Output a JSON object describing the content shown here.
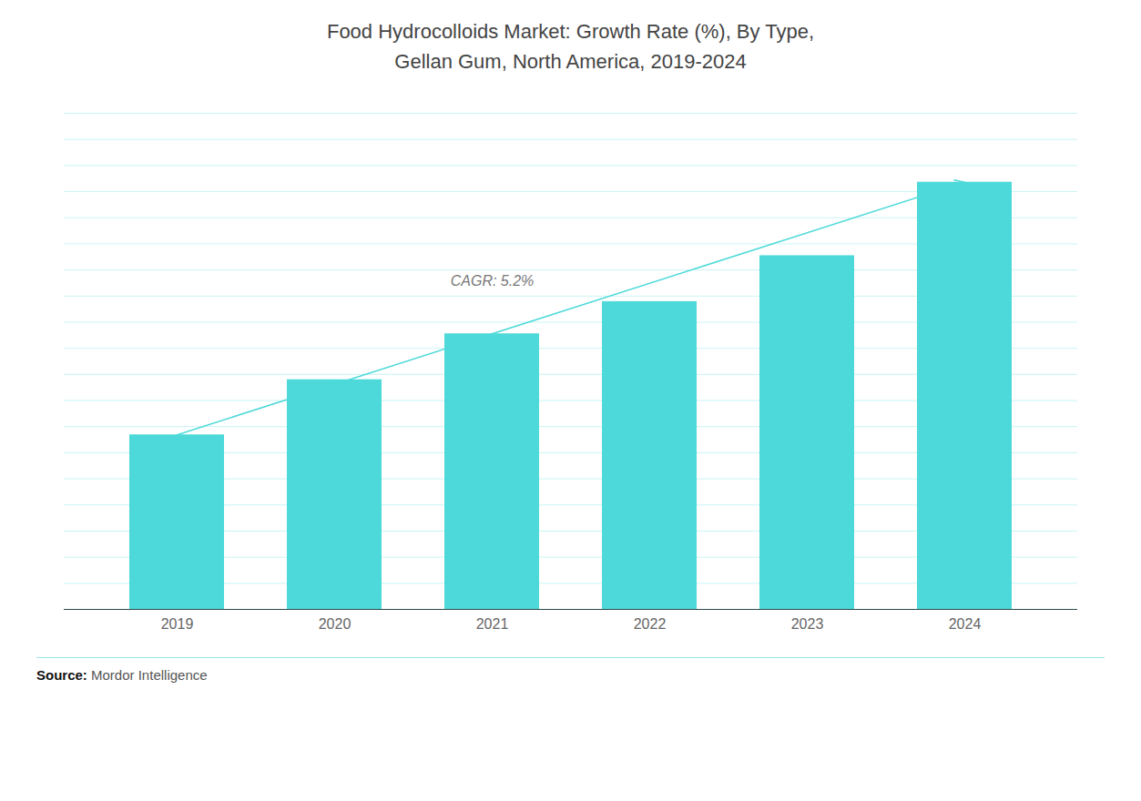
{
  "chart_data": {
    "type": "bar",
    "title": "Food Hydrocolloids Market: Growth Rate (%), By Type,\nGellan Gum, North America, 2019-2024",
    "categories": [
      "2019",
      "2020",
      "2021",
      "2022",
      "2023",
      "2024"
    ],
    "values": [
      0.38,
      0.5,
      0.6,
      0.67,
      0.77,
      0.93
    ],
    "color": "#4DD9D9",
    "ylim": [
      0,
      1.08
    ],
    "yticks": [
      0,
      0.0568421052631579,
      0.1136842105263158,
      0.1705263157894737,
      0.2273684210526316,
      0.2842105263157895,
      0.3410526315789474,
      0.3978947368421053,
      0.4547368421052632,
      0.5115789473684211,
      0.5684210526315789,
      0.6252631578947369,
      0.6821052631578947,
      0.7389473684210526,
      0.7957894736842105,
      0.8526315789473684,
      0.9094736842105263,
      0.9663157894736842,
      1.023157894736842,
      1.08
    ],
    "grid": true,
    "tick_labels": "x",
    "annotations": [
      "CAGR: 5.2%"
    ],
    "caption": "Source: Mordor Intelligence"
  }
}
